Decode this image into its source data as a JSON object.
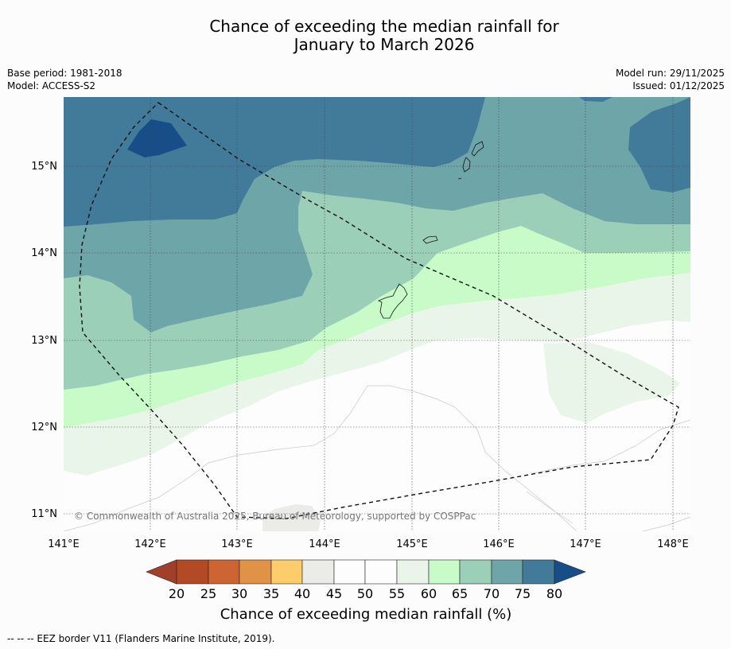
{
  "title": {
    "line1": "Chance of exceeding the median rainfall for",
    "line2": "January to March 2026"
  },
  "meta": {
    "base_period": "Base period: 1981-2018",
    "model": "Model: ACCESS-S2",
    "model_run": "Model run: 29/11/2025",
    "issued": "Issued: 01/12/2025"
  },
  "map": {
    "copyright": "© Commonwealth of Australia 2025, Bureau of Meteorology, supported by COSPPac",
    "lon_labels": [
      "141°E",
      "142°E",
      "143°E",
      "144°E",
      "145°E",
      "146°E",
      "147°E",
      "148°E"
    ],
    "lat_labels": [
      "15°N",
      "14°N",
      "13°N",
      "12°N",
      "11°N"
    ]
  },
  "colorbar": {
    "title": "Chance of exceeding median rainfall (%)",
    "ticks": [
      "20",
      "25",
      "30",
      "35",
      "40",
      "45",
      "50",
      "55",
      "60",
      "65",
      "70",
      "75",
      "80"
    ],
    "colors": {
      "below_20": "#a0402a",
      "c20_25": "#b34a26",
      "c25_30": "#cd6533",
      "c30_35": "#e09346",
      "c35_40": "#fccd6a",
      "c40_45": "#ebebe8",
      "c45_50": "#fdfdfd",
      "c50_55": "#fdfdfd",
      "c55_60": "#eaf5ea",
      "c60_65": "#c8fbc8",
      "c65_70": "#9bcfb8",
      "c70_75": "#6ea5a8",
      "c75_80": "#427b9a",
      "above_80": "#174e88"
    }
  },
  "footer": {
    "legend": "--  --  -- EEZ border V11 (Flanders Marine Institute, 2019)."
  }
}
